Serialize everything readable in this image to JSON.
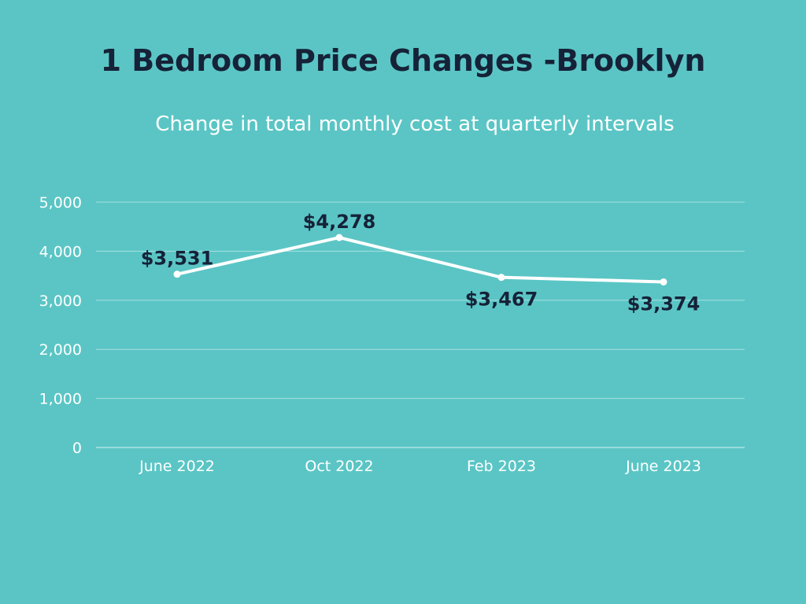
{
  "colors": {
    "background": "#5bc5c5",
    "title": "#152238",
    "line": "#ffffff",
    "grid": "#a6e0e0",
    "data_label": "#152238"
  },
  "chart_data": {
    "type": "line",
    "title": "1 Bedroom Price Changes -Brooklyn",
    "subtitle": "Change in total monthly cost at quarterly intervals",
    "xlabel": "",
    "ylabel": "",
    "categories": [
      "June 2022",
      "Oct 2022",
      "Feb 2023",
      "June 2023"
    ],
    "series": [
      {
        "values": [
          3531,
          4278,
          3467,
          3374
        ],
        "data_labels": [
          "$3,531",
          "$4,278",
          "$3,467",
          "$3,374"
        ],
        "label_positions": [
          "above",
          "above",
          "below",
          "below"
        ]
      }
    ],
    "ylim": [
      0,
      5000
    ],
    "yticks": [
      0,
      1000,
      2000,
      3000,
      4000,
      5000
    ],
    "ytick_labels": [
      "0",
      "1,000",
      "2,000",
      "3,000",
      "4,000",
      "5,000"
    ],
    "grid": true,
    "legend": "none"
  }
}
